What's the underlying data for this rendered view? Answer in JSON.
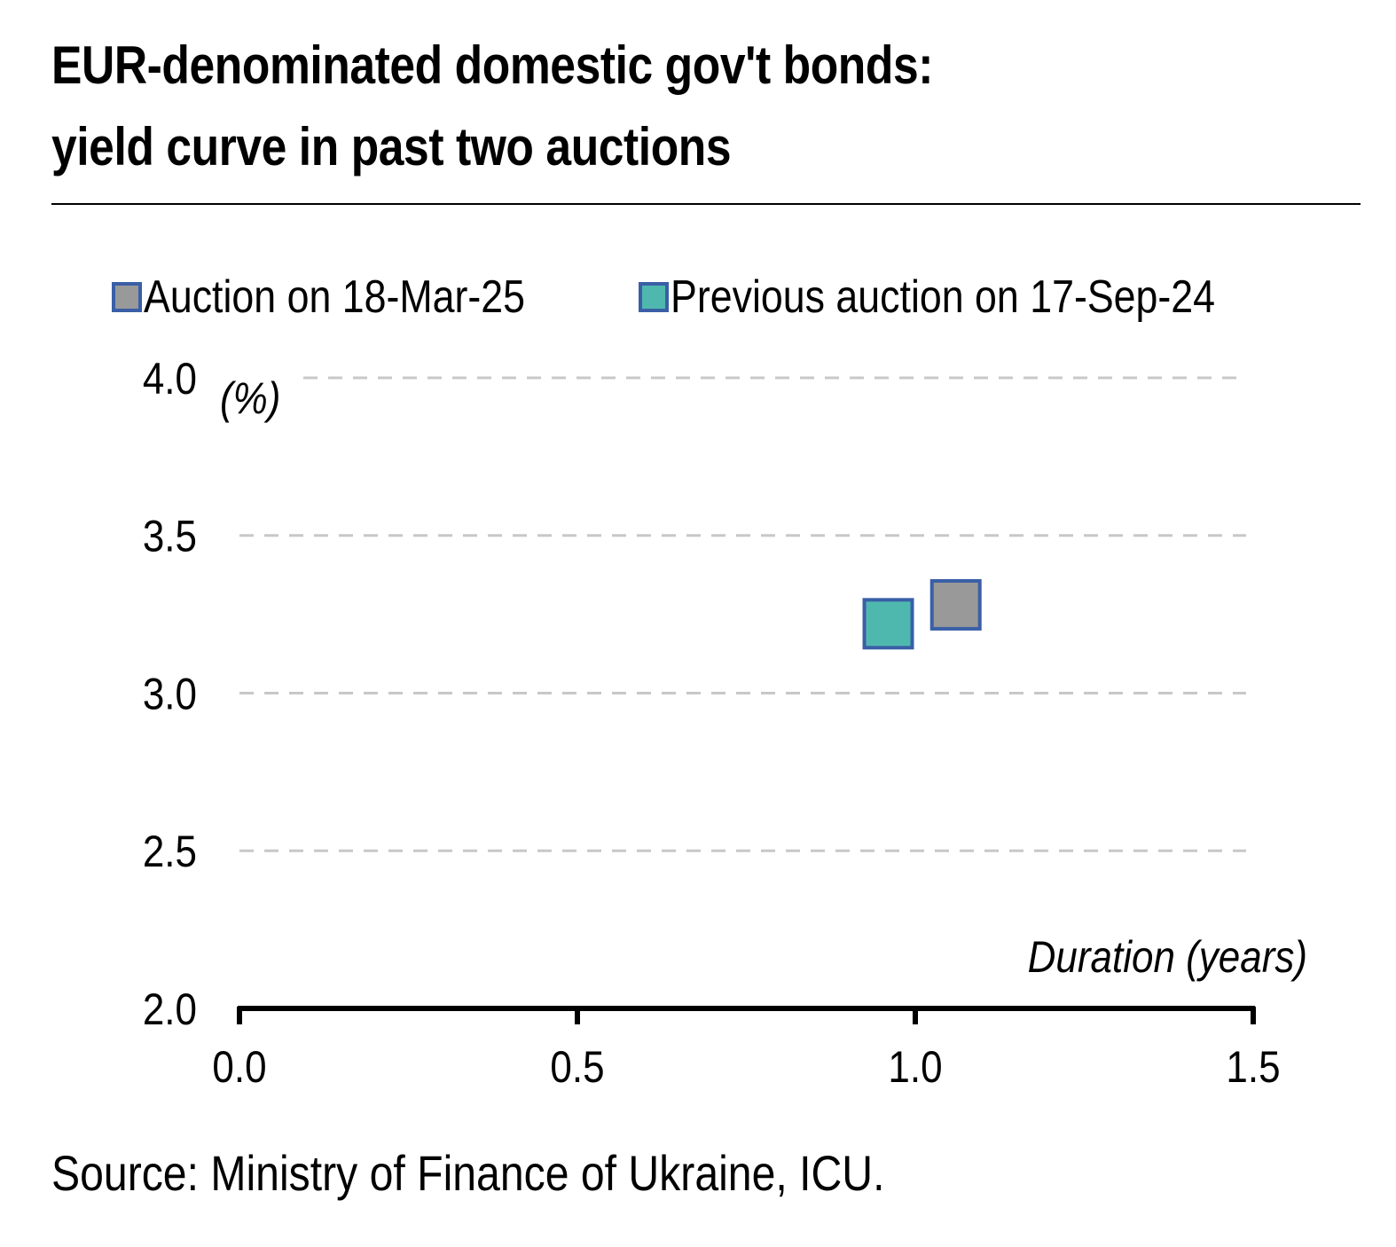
{
  "title_lines": [
    "EUR-denominated domestic gov't bonds:",
    "yield curve in past two auctions"
  ],
  "source": "Source: Ministry of Finance of Ukraine, ICU.",
  "colors": {
    "series1": "#999999",
    "series2": "#4fb8ae",
    "marker_border": "#3a5fa6",
    "grid": "#c8c8c8",
    "axis": "#000000"
  },
  "chart_data": {
    "type": "scatter",
    "ylabel": "(%)",
    "xlabel": "Duration (years)",
    "xlim": [
      0.0,
      1.5
    ],
    "ylim": [
      2.0,
      4.0
    ],
    "xticks": [
      "0.0",
      "0.5",
      "1.0",
      "1.5"
    ],
    "yticks": [
      "2.0",
      "2.5",
      "3.0",
      "3.5",
      "4.0"
    ],
    "grid": "horizontal dashed",
    "legend_position": "top",
    "series": [
      {
        "name": "Auction on 18-Mar-25",
        "color": "#999999",
        "points": [
          {
            "x": 1.06,
            "y": 3.28
          }
        ]
      },
      {
        "name": "Previous auction on 17-Sep-24",
        "color": "#4fb8ae",
        "points": [
          {
            "x": 0.96,
            "y": 3.22
          }
        ]
      }
    ]
  }
}
